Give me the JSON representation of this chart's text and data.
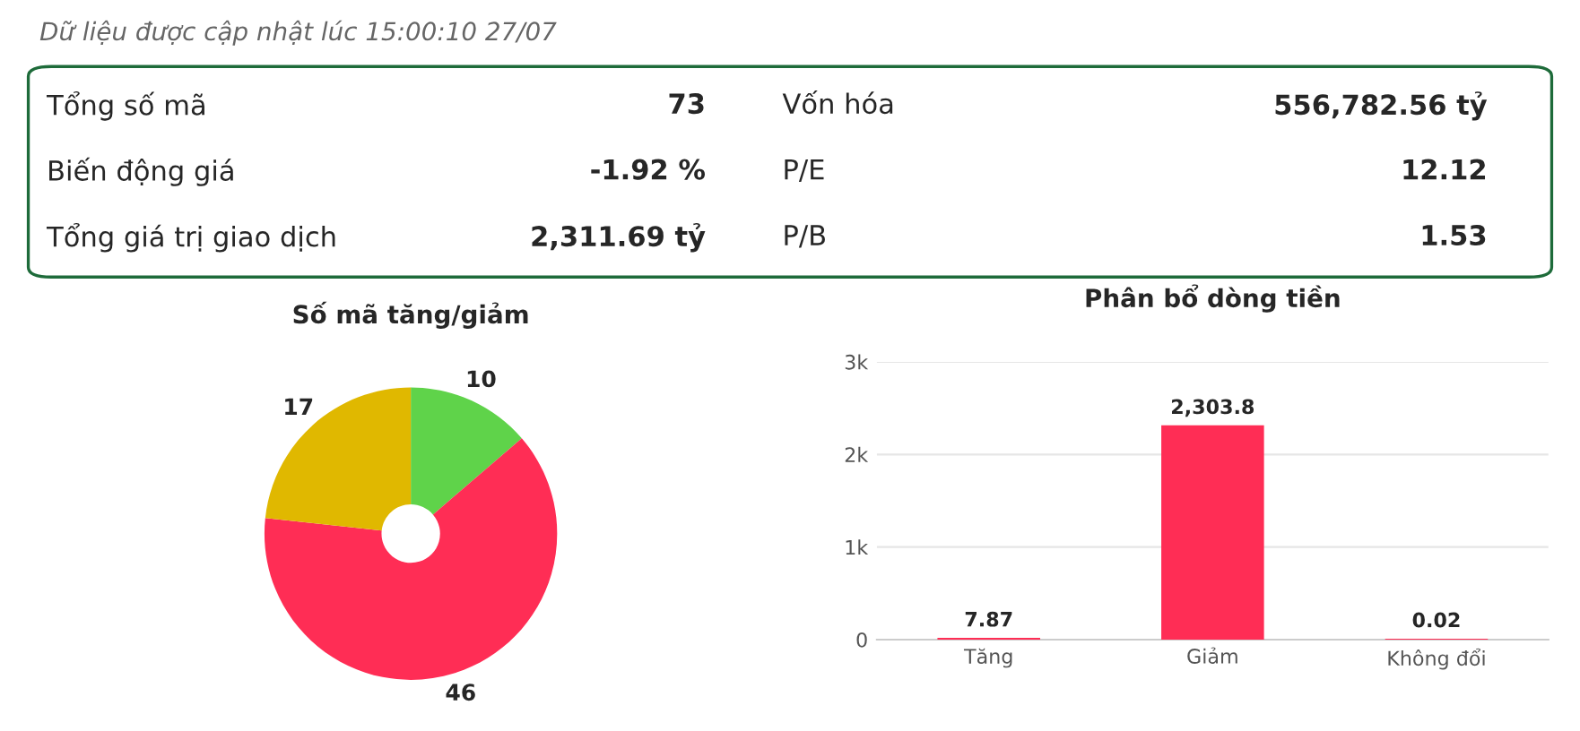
{
  "chart_data": [
    {
      "type": "other",
      "title": "Dữ liệu được cập nhật lúc 15:00:10 27/07",
      "annotations": [
        "Tổng số mã",
        "73",
        "Biến động giá",
        "-1.92 %",
        "Tổng giá trị giao dịch",
        "2,311.69 tỷ",
        "Vốn hóa",
        "556,782.56 tỷ",
        "P/E",
        "12.12",
        "P/B",
        "1.53"
      ]
    },
    {
      "type": "donut",
      "title": "Số mã tăng/giảm",
      "categories": [
        null,
        null,
        null
      ],
      "values": [
        10,
        46,
        17
      ],
      "colors": [
        "#5fd34a",
        "#ff2d55",
        "#e0b800"
      ],
      "data_labels": true
    },
    {
      "type": "bar",
      "title": "Phân bổ dòng tiền",
      "categories": [
        "Tăng",
        "Giảm",
        "Không đổi"
      ],
      "values": [
        7.87,
        2303.8,
        0.02
      ],
      "colors": [
        "#ff2d55",
        "#ff2d55",
        "#ff2d55"
      ],
      "value_labels": [
        "7.87",
        "2,303.8",
        "0.02"
      ],
      "ylim": [
        0,
        3000
      ],
      "yticks": [
        0,
        {
          "value": 1000,
          "label": "1k"
        },
        {
          "value": 2000,
          "label": "2k"
        },
        {
          "value": 3000,
          "label": "3k"
        }
      ],
      "grid": "y"
    }
  ]
}
